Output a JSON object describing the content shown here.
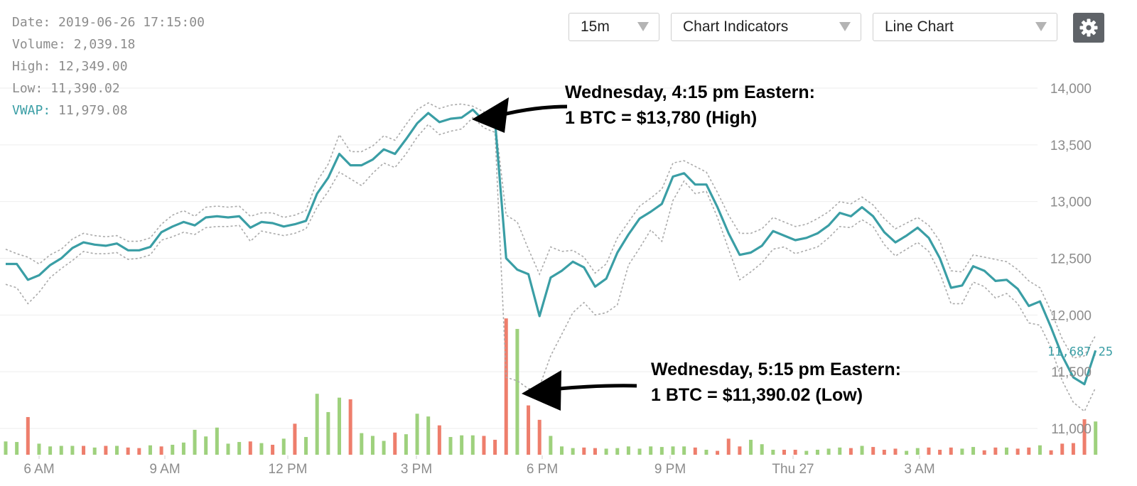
{
  "info": {
    "date_label": "Date:",
    "date_value": "2019-06-26 17:15:00",
    "volume_label": "Volume:",
    "volume_value": "2,039.18",
    "high_label": "High:",
    "high_value": "12,349.00",
    "low_label": "Low:",
    "low_value": "11,390.02",
    "vwap_label": "VWAP:",
    "vwap_value": "11,979.08"
  },
  "controls": {
    "interval": "15m",
    "indicators": "Chart Indicators",
    "chart_type": "Line Chart",
    "settings_icon": "gear-icon"
  },
  "annotations": [
    {
      "line1": "Wednesday, 4:15 pm Eastern:",
      "line2": "1 BTC = $13,780 (High)"
    },
    {
      "line1": "Wednesday, 5:15 pm Eastern:",
      "line2": "1 BTC = $11,390.02 (Low)"
    }
  ],
  "colors": {
    "price_line": "#3a9ea5",
    "band_line": "#aaaaaa",
    "volume_up": "#9ed17d",
    "volume_down": "#ee7e6c",
    "grid": "#eeeeee",
    "axis_text": "#8c8c8c",
    "current_price": "#3a9ea5"
  },
  "chart_data": {
    "type": "line",
    "x_tick_labels": [
      "6 AM",
      "9 AM",
      "12 PM",
      "3 PM",
      "6 PM",
      "9 PM",
      "Thu 27",
      "3 AM"
    ],
    "y_tick_labels": [
      "11,000",
      "11,500",
      "12,000",
      "12,500",
      "13,000",
      "13,500",
      "14,000"
    ],
    "y_ticks": [
      11000,
      11500,
      12000,
      12500,
      13000,
      13500,
      14000
    ],
    "ylim": [
      10800,
      14250
    ],
    "current_price_label": "11,687.25",
    "current_price": 11687.25,
    "price": [
      12450,
      12450,
      12310,
      12350,
      12440,
      12500,
      12590,
      12640,
      12620,
      12610,
      12630,
      12570,
      12570,
      12600,
      12730,
      12780,
      12820,
      12790,
      12860,
      12870,
      12860,
      12870,
      12770,
      12820,
      12810,
      12780,
      12800,
      12830,
      13070,
      13210,
      13420,
      13320,
      13320,
      13370,
      13460,
      13420,
      13550,
      13690,
      13780,
      13700,
      13730,
      13740,
      13810,
      13710,
      13710,
      12500,
      12400,
      12360,
      11990,
      12330,
      12390,
      12470,
      12420,
      12250,
      12320,
      12550,
      12710,
      12850,
      12910,
      12980,
      13220,
      13250,
      13150,
      13150,
      12950,
      12720,
      12530,
      12550,
      12610,
      12740,
      12700,
      12660,
      12680,
      12720,
      12790,
      12900,
      12870,
      12950,
      12870,
      12730,
      12640,
      12700,
      12770,
      12680,
      12500,
      12240,
      12260,
      12430,
      12390,
      12300,
      12310,
      12230,
      12080,
      12120,
      11890,
      11640,
      11450,
      11390,
      11687.25
    ],
    "band_upper": [
      12580,
      12540,
      12510,
      12450,
      12530,
      12580,
      12670,
      12720,
      12700,
      12690,
      12700,
      12650,
      12650,
      12680,
      12800,
      12880,
      12920,
      12870,
      12950,
      12960,
      12950,
      12960,
      12870,
      12900,
      12900,
      12860,
      12880,
      12920,
      13180,
      13330,
      13590,
      13440,
      13440,
      13490,
      13580,
      13540,
      13680,
      13810,
      13870,
      13820,
      13850,
      13860,
      13840,
      13790,
      13720,
      12880,
      12820,
      12580,
      12360,
      12600,
      12560,
      12570,
      12510,
      12370,
      12450,
      12680,
      12820,
      12960,
      13030,
      13110,
      13340,
      13360,
      13310,
      13260,
      13080,
      12880,
      12720,
      12720,
      12760,
      12860,
      12820,
      12780,
      12800,
      12850,
      12910,
      13000,
      12980,
      13040,
      12970,
      12850,
      12760,
      12810,
      12860,
      12790,
      12650,
      12390,
      12380,
      12530,
      12510,
      12490,
      12470,
      12400,
      12300,
      12240,
      12030,
      11790,
      11620,
      11640,
      11820
    ],
    "band_lower": [
      12270,
      12240,
      12100,
      12200,
      12330,
      12410,
      12480,
      12560,
      12540,
      12540,
      12550,
      12490,
      12500,
      12530,
      12660,
      12690,
      12730,
      12710,
      12770,
      12780,
      12780,
      12790,
      12650,
      12740,
      12720,
      12700,
      12720,
      12760,
      12950,
      13090,
      13260,
      13200,
      13140,
      13250,
      13340,
      13300,
      13420,
      13570,
      13680,
      13590,
      13620,
      13640,
      13740,
      13650,
      13610,
      11450,
      11420,
      11350,
      11370,
      11640,
      11830,
      12020,
      12110,
      12000,
      12020,
      12090,
      12440,
      12590,
      12750,
      12650,
      13010,
      13180,
      13070,
      13090,
      12860,
      12580,
      12310,
      12380,
      12460,
      12580,
      12600,
      12540,
      12570,
      12600,
      12680,
      12780,
      12770,
      12840,
      12780,
      12620,
      12520,
      12580,
      12640,
      12560,
      12370,
      12100,
      12100,
      12290,
      12250,
      12150,
      12190,
      12100,
      11930,
      11910,
      11710,
      11420,
      11230,
      11150,
      11360
    ],
    "volume": [
      0.24,
      0.23,
      0.68,
      0.2,
      0.15,
      0.16,
      0.16,
      0.16,
      0.13,
      0.16,
      0.16,
      0.13,
      0.12,
      0.17,
      0.15,
      0.18,
      0.22,
      0.45,
      0.33,
      0.49,
      0.2,
      0.23,
      0.24,
      0.21,
      0.18,
      0.29,
      0.56,
      0.32,
      1.1,
      0.77,
      1.03,
      1.0,
      0.39,
      0.34,
      0.25,
      0.4,
      0.37,
      0.74,
      0.69,
      0.53,
      0.32,
      0.35,
      0.35,
      0.34,
      0.27,
      2.46,
      2.27,
      0.89,
      0.63,
      0.34,
      0.15,
      0.12,
      0.13,
      0.12,
      0.11,
      0.12,
      0.15,
      0.11,
      0.15,
      0.14,
      0.15,
      0.15,
      0.13,
      0.09,
      0.07,
      0.29,
      0.15,
      0.27,
      0.19,
      0.09,
      0.09,
      0.09,
      0.07,
      0.09,
      0.11,
      0.13,
      0.12,
      0.16,
      0.14,
      0.09,
      0.11,
      0.07,
      0.12,
      0.13,
      0.09,
      0.13,
      0.11,
      0.14,
      0.08,
      0.13,
      0.13,
      0.11,
      0.13,
      0.17,
      0.08,
      0.2,
      0.21,
      0.64,
      0.6
    ],
    "volume_up": [
      true,
      true,
      false,
      true,
      true,
      true,
      true,
      false,
      true,
      false,
      true,
      false,
      false,
      true,
      false,
      true,
      true,
      true,
      true,
      true,
      true,
      true,
      false,
      true,
      false,
      true,
      false,
      true,
      true,
      true,
      true,
      false,
      true,
      true,
      true,
      false,
      true,
      true,
      true,
      false,
      true,
      true,
      true,
      false,
      false,
      false,
      true,
      false,
      false,
      true,
      true,
      true,
      false,
      false,
      true,
      true,
      true,
      true,
      true,
      true,
      true,
      true,
      false,
      true,
      false,
      false,
      false,
      true,
      true,
      true,
      false,
      false,
      true,
      true,
      true,
      true,
      false,
      true,
      false,
      false,
      false,
      true,
      true,
      false,
      false,
      false,
      true,
      true,
      false,
      false,
      true,
      false,
      false,
      true,
      false,
      false,
      false,
      false,
      true
    ]
  }
}
